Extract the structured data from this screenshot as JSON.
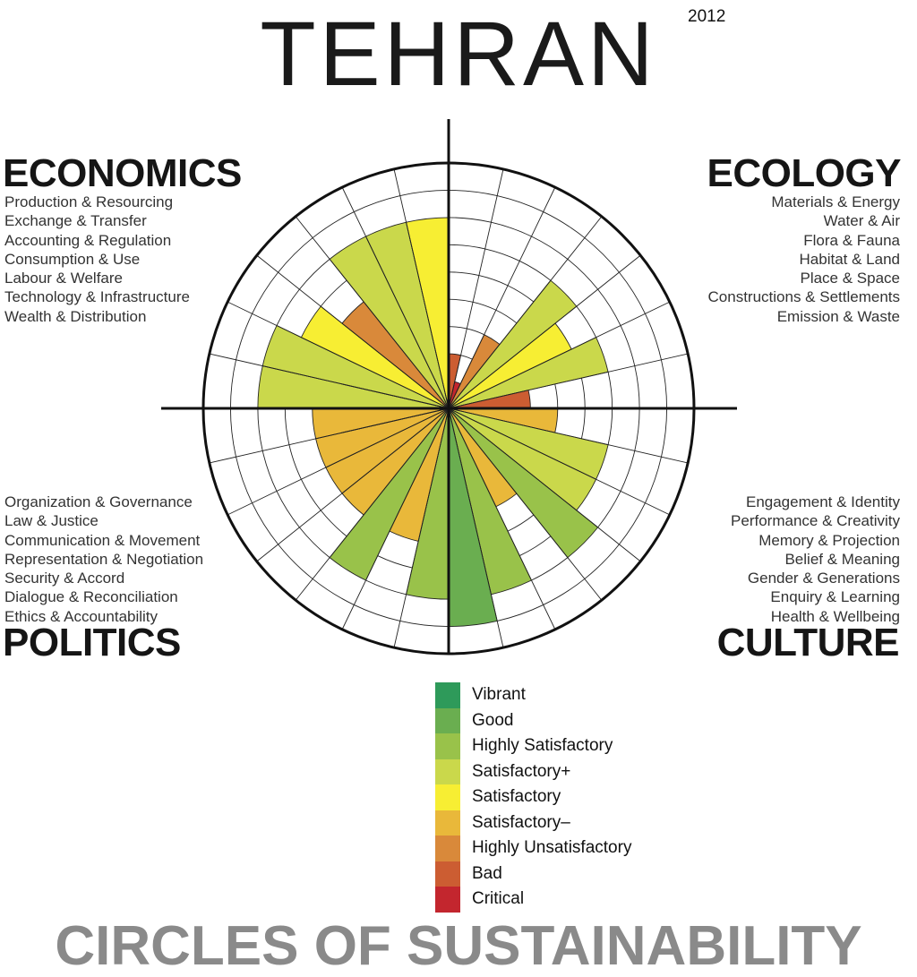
{
  "header": {
    "city": "TEHRAN",
    "year": "2012"
  },
  "domains": {
    "economics": {
      "title": "ECONOMICS",
      "items": [
        "Production & Resourcing",
        "Exchange & Transfer",
        "Accounting & Regulation",
        "Consumption & Use",
        "Labour & Welfare",
        "Technology & Infrastructure",
        "Wealth & Distribution"
      ]
    },
    "ecology": {
      "title": "ECOLOGY",
      "items": [
        "Materials & Energy",
        "Water & Air",
        "Flora & Fauna",
        "Habitat & Land",
        "Place & Space",
        "Constructions & Settlements",
        "Emission & Waste"
      ]
    },
    "politics": {
      "title": "POLITICS",
      "items": [
        "Organization & Governance",
        "Law & Justice",
        "Communication & Movement",
        "Representation & Negotiation",
        "Security & Accord",
        "Dialogue & Reconciliation",
        "Ethics & Accountability"
      ]
    },
    "culture": {
      "title": "CULTURE",
      "items": [
        "Engagement & Identity",
        "Performance & Creativity",
        "Memory & Projection",
        "Belief & Meaning",
        "Gender & Generations",
        "Enquiry & Learning",
        "Health & Wellbeing"
      ]
    }
  },
  "legend": [
    {
      "label": "Vibrant",
      "color": "#2e9a5a"
    },
    {
      "label": "Good",
      "color": "#6aae50"
    },
    {
      "label": "Highly Satisfactory",
      "color": "#99c24a"
    },
    {
      "label": "Satisfactory+",
      "color": "#cad84b"
    },
    {
      "label": "Satisfactory",
      "color": "#f7ee33"
    },
    {
      "label": "Satisfactory–",
      "color": "#e9b83a"
    },
    {
      "label": "Highly Unsatisfactory",
      "color": "#d9893a"
    },
    {
      "label": "Bad",
      "color": "#cc5d32"
    },
    {
      "label": "Critical",
      "color": "#c3262e"
    }
  ],
  "chart_data": {
    "type": "radial-bar",
    "scale_max": 9,
    "segments": [
      {
        "domain": "ecology",
        "indicator": "Materials & Energy",
        "value": 2,
        "rating": "Bad"
      },
      {
        "domain": "ecology",
        "indicator": "Water & Air",
        "value": 1,
        "rating": "Critical"
      },
      {
        "domain": "ecology",
        "indicator": "Flora & Fauna",
        "value": 3,
        "rating": "Highly Unsatisfactory"
      },
      {
        "domain": "ecology",
        "indicator": "Habitat & Land",
        "value": 6,
        "rating": "Satisfactory+"
      },
      {
        "domain": "ecology",
        "indicator": "Place & Space",
        "value": 5,
        "rating": "Satisfactory"
      },
      {
        "domain": "ecology",
        "indicator": "Constructions & Settlements",
        "value": 6,
        "rating": "Satisfactory+"
      },
      {
        "domain": "ecology",
        "indicator": "Emission & Waste",
        "value": 3,
        "rating": "Bad"
      },
      {
        "domain": "culture",
        "indicator": "Engagement & Identity",
        "value": 4,
        "rating": "Satisfactory–"
      },
      {
        "domain": "culture",
        "indicator": "Performance & Creativity",
        "value": 6,
        "rating": "Satisfactory+"
      },
      {
        "domain": "culture",
        "indicator": "Memory & Projection",
        "value": 6,
        "rating": "Satisfactory+"
      },
      {
        "domain": "culture",
        "indicator": "Belief & Meaning",
        "value": 7,
        "rating": "Highly Satisfactory"
      },
      {
        "domain": "culture",
        "indicator": "Gender & Generations",
        "value": 4,
        "rating": "Satisfactory–"
      },
      {
        "domain": "culture",
        "indicator": "Enquiry & Learning",
        "value": 7,
        "rating": "Highly Satisfactory"
      },
      {
        "domain": "culture",
        "indicator": "Health & Wellbeing",
        "value": 8,
        "rating": "Good"
      },
      {
        "domain": "politics",
        "indicator": "Organization & Governance",
        "value": 7,
        "rating": "Highly Satisfactory"
      },
      {
        "domain": "politics",
        "indicator": "Law & Justice",
        "value": 5,
        "rating": "Satisfactory–"
      },
      {
        "domain": "politics",
        "indicator": "Communication & Movement",
        "value": 7,
        "rating": "Highly Satisfactory"
      },
      {
        "domain": "politics",
        "indicator": "Representation & Negotiation",
        "value": 5,
        "rating": "Satisfactory–"
      },
      {
        "domain": "politics",
        "indicator": "Security & Accord",
        "value": 5,
        "rating": "Satisfactory–"
      },
      {
        "domain": "politics",
        "indicator": "Dialogue & Reconciliation",
        "value": 5,
        "rating": "Satisfactory–"
      },
      {
        "domain": "politics",
        "indicator": "Ethics & Accountability",
        "value": 5,
        "rating": "Satisfactory–"
      },
      {
        "domain": "economics",
        "indicator": "Production & Resourcing",
        "value": 7,
        "rating": "Satisfactory+"
      },
      {
        "domain": "economics",
        "indicator": "Exchange & Transfer",
        "value": 7,
        "rating": "Satisfactory+"
      },
      {
        "domain": "economics",
        "indicator": "Accounting & Regulation",
        "value": 6,
        "rating": "Satisfactory"
      },
      {
        "domain": "economics",
        "indicator": "Consumption & Use",
        "value": 5,
        "rating": "Highly Unsatisfactory"
      },
      {
        "domain": "economics",
        "indicator": "Labour & Welfare",
        "value": 7,
        "rating": "Satisfactory+"
      },
      {
        "domain": "economics",
        "indicator": "Technology & Infrastructure",
        "value": 7,
        "rating": "Satisfactory+"
      },
      {
        "domain": "economics",
        "indicator": "Wealth & Distribution",
        "value": 7,
        "rating": "Satisfactory"
      }
    ]
  },
  "footer": {
    "title": "CIRCLES OF SUSTAINABILITY"
  }
}
